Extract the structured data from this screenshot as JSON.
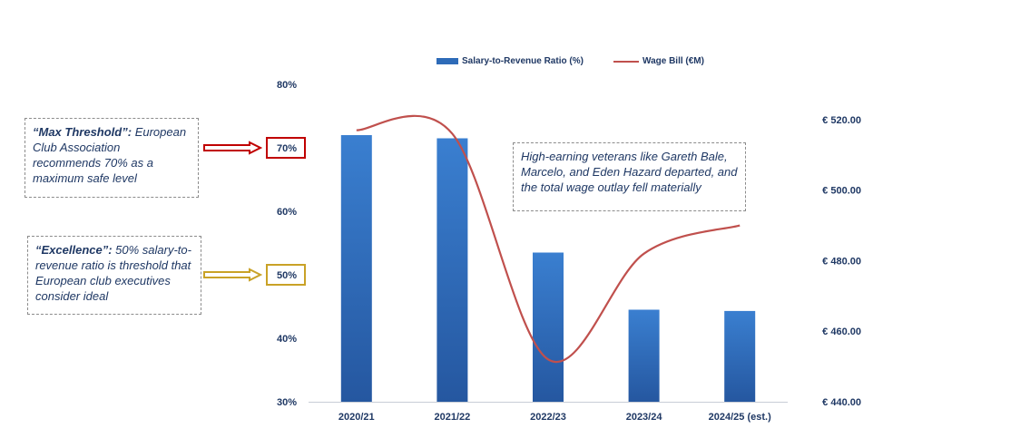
{
  "chart_data": {
    "type": "bar",
    "categories": [
      "2020/21",
      "2021/22",
      "2022/23",
      "2023/24",
      "2024/25 (est.)"
    ],
    "series": [
      {
        "name": "Salary-to-Revenue Ratio (%)",
        "type": "bar",
        "axis": "left",
        "values": [
          72,
          71.5,
          53.5,
          44.5,
          44.3
        ]
      },
      {
        "name": "Wage Bill (€M)",
        "type": "line",
        "axis": "right",
        "smooth": true,
        "values": [
          517,
          516,
          452,
          482,
          490
        ]
      }
    ],
    "y_left": {
      "ticks": [
        "80%",
        "70%",
        "60%",
        "50%",
        "40%",
        "30%"
      ],
      "tick_values": [
        80,
        70,
        60,
        50,
        40,
        30
      ],
      "range": [
        30,
        80
      ]
    },
    "y_right": {
      "ticks": [
        "€ 520.00",
        "€ 500.00",
        "€ 480.00",
        "€ 460.00",
        "€ 440.00"
      ],
      "tick_values": [
        520,
        500,
        480,
        460,
        440
      ],
      "range": [
        440,
        530
      ]
    },
    "legend_position": "top",
    "grid": false,
    "colors": {
      "bar": "#2e6bb8",
      "line": "#c0504d",
      "max_threshold": "#c00000",
      "excellence": "#c9a227"
    },
    "annotations": {
      "max_threshold": {
        "title": "“Max Threshold”:",
        "text": " European Club Association recommends 70% as a maximum safe level",
        "marker_label": "70%"
      },
      "excellence": {
        "title": "“Excellence”:",
        "text": " 50% salary-to-revenue ratio is  threshold that European club executives consider ideal",
        "marker_label": "50%"
      },
      "veterans": {
        "text": "High-earning veterans like Gareth Bale, Marcelo, and Eden Hazard departed, and the total wage outlay fell materially"
      }
    }
  }
}
